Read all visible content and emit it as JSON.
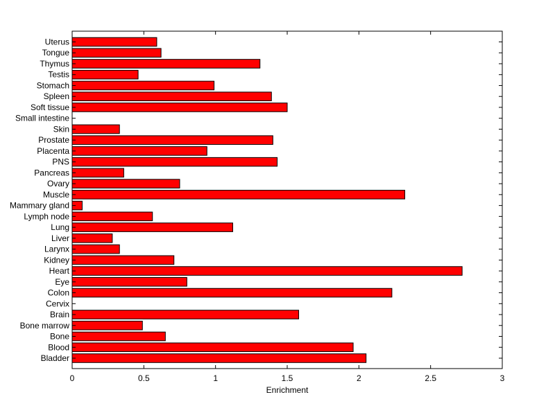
{
  "chart_data": {
    "type": "bar",
    "orientation": "horizontal",
    "title": "",
    "xlabel": "Enrichment",
    "ylabel": "",
    "xlim": [
      0,
      3
    ],
    "xticks": [
      "0",
      "0.5",
      "1",
      "1.5",
      "2",
      "2.5",
      "3"
    ],
    "grid": false,
    "legend": "none",
    "bar_color": "#ff0000",
    "bar_edge_color": "#000000",
    "categories": [
      "Bladder",
      "Blood",
      "Bone",
      "Bone marrow",
      "Brain",
      "Cervix",
      "Colon",
      "Eye",
      "Heart",
      "Kidney",
      "Larynx",
      "Liver",
      "Lung",
      "Lymph node",
      "Mammary gland",
      "Muscle",
      "Ovary",
      "Pancreas",
      "PNS",
      "Placenta",
      "Prostate",
      "Skin",
      "Small intestine",
      "Soft tissue",
      "Spleen",
      "Stomach",
      "Testis",
      "Thymus",
      "Tongue",
      "Uterus"
    ],
    "values": [
      2.05,
      1.96,
      0.65,
      0.49,
      1.58,
      0.0,
      2.23,
      0.8,
      2.72,
      0.71,
      0.33,
      0.28,
      1.12,
      0.56,
      0.07,
      2.32,
      0.75,
      0.36,
      1.43,
      0.94,
      1.4,
      0.33,
      0.0,
      1.5,
      1.39,
      0.99,
      0.46,
      1.31,
      0.62,
      0.59
    ]
  }
}
